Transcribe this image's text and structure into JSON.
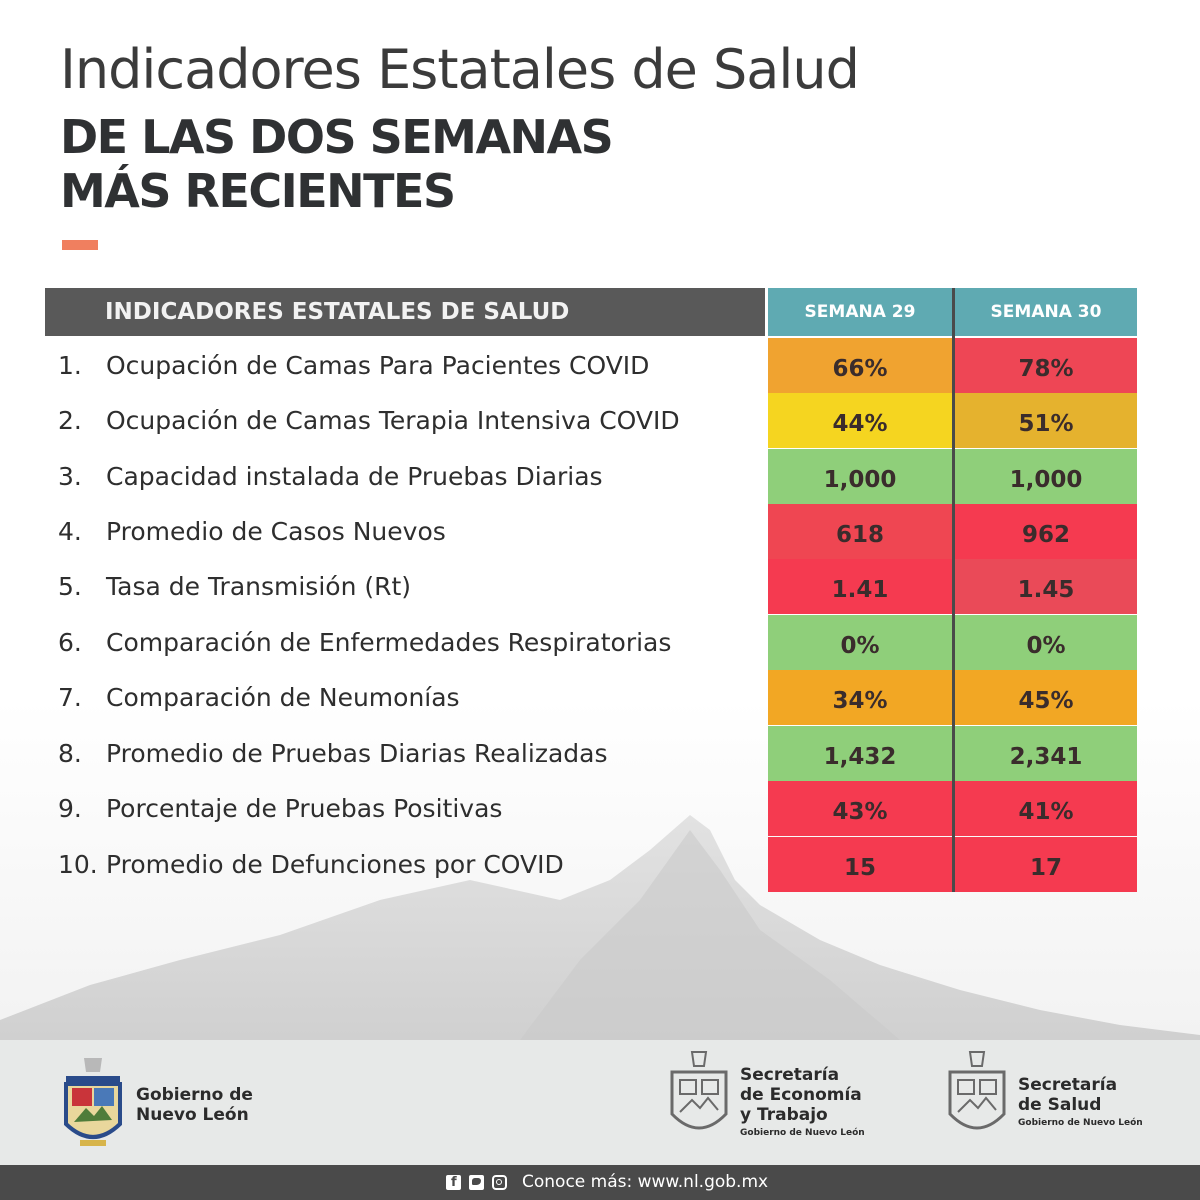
{
  "header": {
    "title_line1": "Indicadores Estatales de Salud",
    "title_line2": "DE LAS DOS SEMANAS",
    "title_line3": "MÁS RECIENTES"
  },
  "table": {
    "header_label": "INDICADORES ESTATALES DE SALUD",
    "col1_label": "SEMANA 29",
    "col2_label": "SEMANA 30",
    "rows": [
      {
        "num": "1.",
        "label": "Ocupación de Camas Para Pacientes COVID",
        "w29": "66%",
        "w30": "78%",
        "color29": "#f0a330",
        "color30": "#ee4655"
      },
      {
        "num": "2.",
        "label": "Ocupación de Camas Terapia Intensiva COVID",
        "w29": "44%",
        "w30": "51%",
        "color29": "#f5d520",
        "color30": "#e5b22e"
      },
      {
        "num": "3.",
        "label": "Capacidad instalada de Pruebas Diarias",
        "w29": "1,000",
        "w30": "1,000",
        "color29": "#8fcf7a",
        "color30": "#8fcf7a"
      },
      {
        "num": "4.",
        "label": "Promedio de Casos Nuevos",
        "w29": "618",
        "w30": "962",
        "color29": "#ef4652",
        "color30": "#f53a50"
      },
      {
        "num": "5.",
        "label": "Tasa de Transmisión (Rt)",
        "w29": "1.41",
        "w30": "1.45",
        "color29": "#f53a50",
        "color30": "#ea4a58"
      },
      {
        "num": "6.",
        "label": "Comparación de Enfermedades Respiratorias",
        "w29": "0%",
        "w30": "0%",
        "color29": "#8fcf7a",
        "color30": "#8fcf7a"
      },
      {
        "num": "7.",
        "label": "Comparación de Neumonías",
        "w29": "34%",
        "w30": "45%",
        "color29": "#f2a724",
        "color30": "#f2a724"
      },
      {
        "num": "8.",
        "label": "Promedio de Pruebas Diarias Realizadas",
        "w29": "1,432",
        "w30": "2,341",
        "color29": "#8fcf7a",
        "color30": "#8fcf7a"
      },
      {
        "num": "9.",
        "label": "Porcentaje de Pruebas Positivas",
        "w29": "43%",
        "w30": "41%",
        "color29": "#f53a50",
        "color30": "#f53a50"
      },
      {
        "num": "10.",
        "label": "Promedio de Defunciones por COVID",
        "w29": "15",
        "w30": "17",
        "color29": "#f53a50",
        "color30": "#f53a50"
      }
    ]
  },
  "footer": {
    "logo1_line1": "Gobierno de",
    "logo1_line2": "Nuevo León",
    "logo2_line1": "Secretaría",
    "logo2_line2": "de Economía",
    "logo2_line3": "y Trabajo",
    "logo2_sub": "Gobierno de Nuevo León",
    "logo3_line1": "Secretaría",
    "logo3_line2": "de Salud",
    "logo3_sub": "Gobierno de Nuevo León",
    "social_text": "Conoce más: www.nl.gob.mx"
  },
  "colors": {
    "accent": "#f07f5f",
    "header_gray": "#595959",
    "header_teal": "#5faab2",
    "footer_bg": "#e7e9e8",
    "bottom_bar": "#4a4a4a"
  },
  "icons": [
    "state-coat-of-arms-icon",
    "facebook-icon",
    "twitter-icon",
    "instagram-icon"
  ]
}
